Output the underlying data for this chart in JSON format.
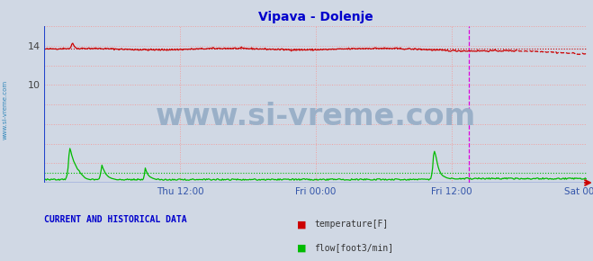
{
  "title": "Vipava - Dolenje",
  "title_color": "#0000cc",
  "bg_color": "#d0d8e4",
  "plot_bg_color": "#d0d8e4",
  "xlabel_ticks": [
    "Thu 12:00",
    "Fri 00:00",
    "Fri 12:00",
    "Sat 00:00"
  ],
  "xlabel_tick_positions": [
    144,
    288,
    432,
    576
  ],
  "ylim": [
    0,
    16
  ],
  "temp_color": "#cc0000",
  "flow_color": "#00bb00",
  "watermark_text": "www.si-vreme.com",
  "watermark_color": "#9ab0c8",
  "watermark_fontsize": 24,
  "sidebar_text": "www.si-vreme.com",
  "sidebar_color": "#3388bb",
  "legend_items": [
    {
      "label": "temperature[F]",
      "color": "#cc0000"
    },
    {
      "label": "flow[foot3/min]",
      "color": "#00bb00"
    }
  ],
  "footer_text": "CURRENT AND HISTORICAL DATA",
  "footer_color": "#0000cc",
  "temp_ref_y": 13.7,
  "flow_ref_y": 1.0,
  "magenta_vline_x": 450,
  "total_points": 576
}
